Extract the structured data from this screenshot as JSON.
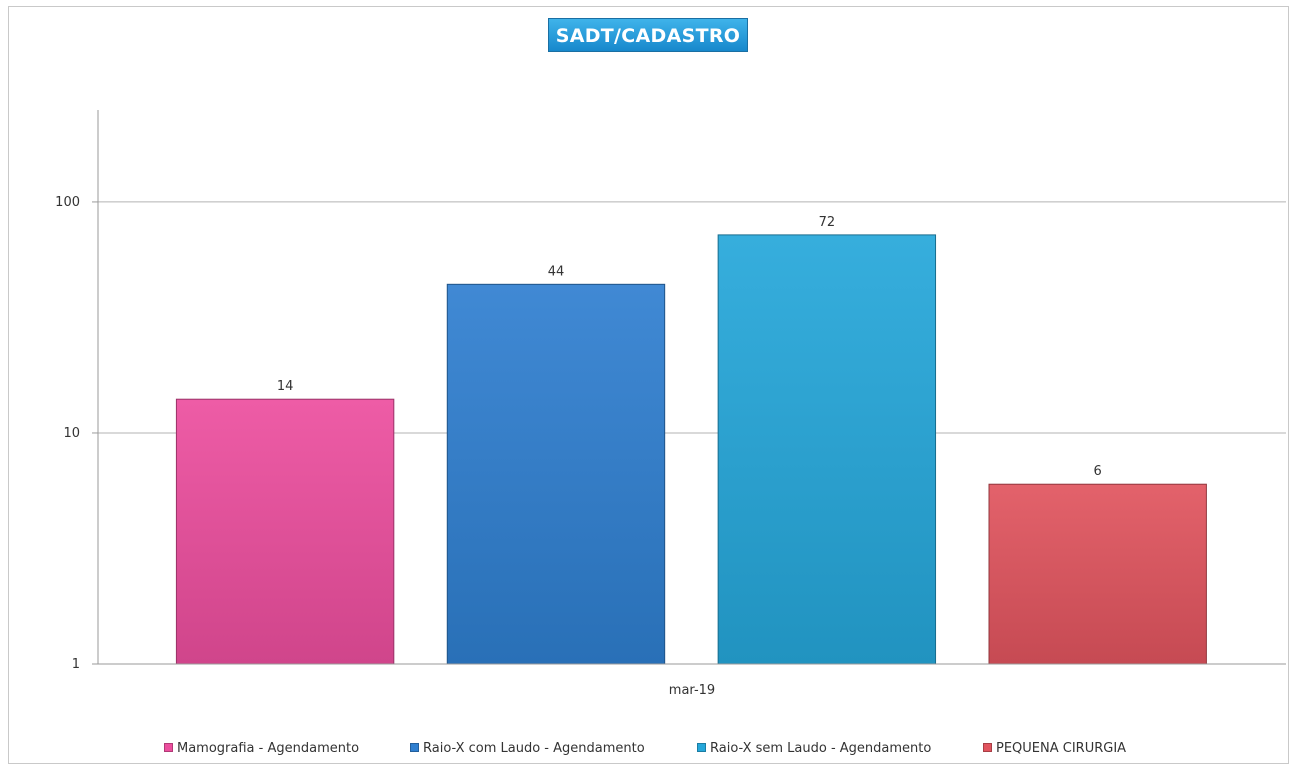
{
  "chart_data": {
    "type": "bar",
    "title": "SADT/CADASTRO",
    "categories": [
      "mar-19"
    ],
    "series": [
      {
        "name": "Mamografia - Agendamento",
        "values": [
          14
        ],
        "color": "#ec4e9e"
      },
      {
        "name": "Raio-X com Laudo - Agendamento",
        "values": [
          44
        ],
        "color": "#2f7fd0"
      },
      {
        "name": "Raio-X sem Laudo - Agendamento",
        "values": [
          72
        ],
        "color": "#25a7da"
      },
      {
        "name": "PEQUENA CIRURGIA",
        "values": [
          6
        ],
        "color": "#e1545e"
      }
    ],
    "data_labels": [
      "14",
      "44",
      "72",
      "6"
    ],
    "yscale": "log",
    "ylim": [
      1,
      250
    ],
    "yticks": [
      {
        "value": 1,
        "label": "1"
      },
      {
        "value": 10,
        "label": "10"
      },
      {
        "value": 100,
        "label": "100"
      }
    ],
    "grid": true,
    "legend_position": "bottom",
    "xlabel": "",
    "ylabel": ""
  }
}
